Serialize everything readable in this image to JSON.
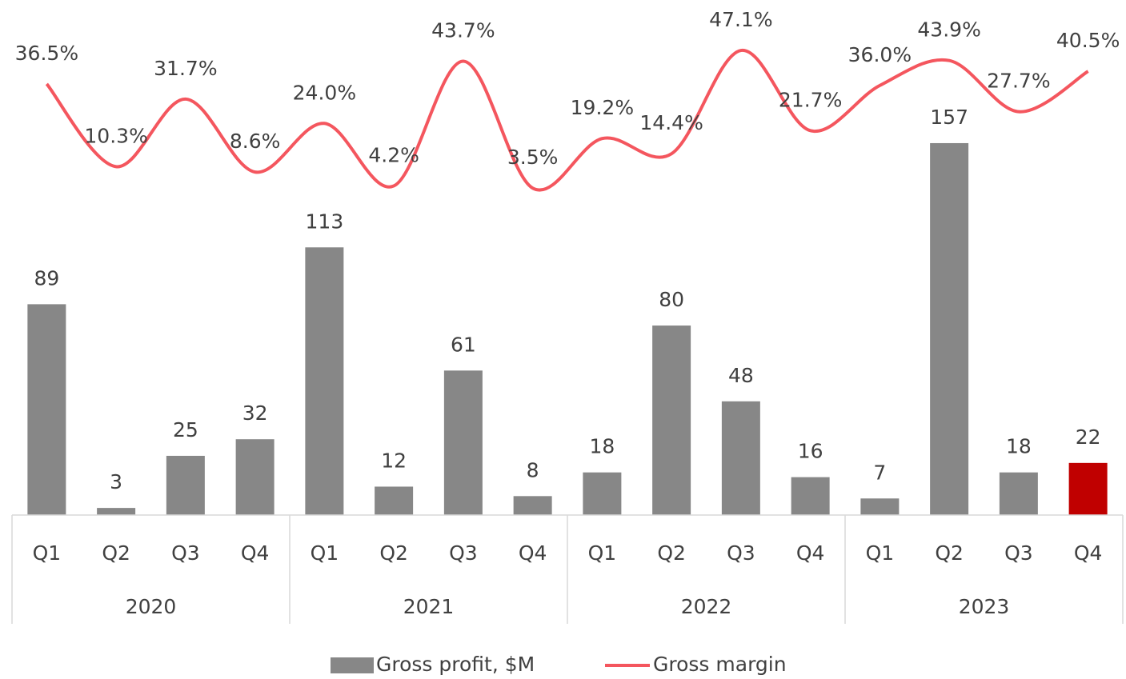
{
  "chart_data": {
    "type": "bar_line",
    "categories": [
      "Q1",
      "Q2",
      "Q3",
      "Q4",
      "Q1",
      "Q2",
      "Q3",
      "Q4",
      "Q1",
      "Q2",
      "Q3",
      "Q4",
      "Q1",
      "Q2",
      "Q3",
      "Q4"
    ],
    "year_groups": [
      "2020",
      "2021",
      "2022",
      "2023"
    ],
    "ylim": [
      0,
      200
    ],
    "y2lim": [
      -100,
      50
    ],
    "series": [
      {
        "name": "Gross profit, $M",
        "type": "bar",
        "color": "#878787",
        "colors": [
          "#878787",
          "#878787",
          "#878787",
          "#878787",
          "#878787",
          "#878787",
          "#878787",
          "#878787",
          "#878787",
          "#878787",
          "#878787",
          "#878787",
          "#878787",
          "#878787",
          "#878787",
          "#c00000"
        ],
        "values": [
          89,
          3,
          25,
          32,
          113,
          12,
          61,
          8,
          18,
          80,
          48,
          16,
          7,
          157,
          18,
          22
        ]
      },
      {
        "name": "Gross margin",
        "type": "line",
        "axis": "y2",
        "color": "#f4565e",
        "values": [
          36.5,
          10.3,
          31.7,
          8.6,
          24.0,
          4.2,
          43.7,
          3.5,
          19.2,
          14.4,
          47.1,
          21.7,
          36.0,
          43.9,
          27.7,
          40.5
        ],
        "value_labels": [
          "36.5%",
          "10.3%",
          "31.7%",
          "8.6%",
          "24.0%",
          "4.2%",
          "43.7%",
          "3.5%",
          "19.2%",
          "14.4%",
          "47.1%",
          "21.7%",
          "36.0%",
          "43.9%",
          "27.7%",
          "40.5%"
        ]
      }
    ]
  }
}
